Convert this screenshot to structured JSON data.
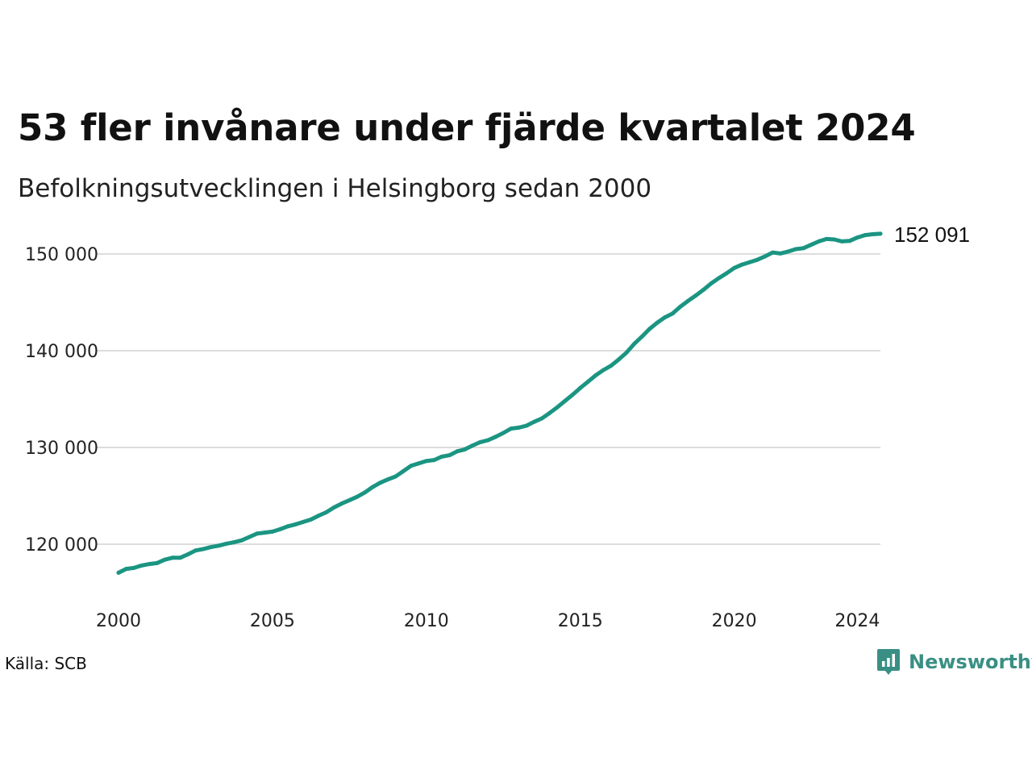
{
  "header": {
    "title": "53 fler invånare under fjärde kvartalet 2024",
    "subtitle": "Befolkningsutvecklingen i Helsingborg sedan 2000"
  },
  "footer": {
    "source": "Källa: SCB",
    "brand": "Newsworthy",
    "brand_icon": "newsworthy-logo-icon",
    "brand_color": "#3a8f84"
  },
  "chart_data": {
    "type": "line",
    "title": "53 fler invånare under fjärde kvartalet 2024",
    "subtitle": "Befolkningsutvecklingen i Helsingborg sedan 2000",
    "xlabel": "",
    "ylabel": "",
    "color": "#1b9582",
    "grid": true,
    "xlim": [
      2000.0,
      2024.75
    ],
    "ylim": [
      115000,
      152500
    ],
    "xticks": [
      2000,
      2005,
      2010,
      2015,
      2020,
      2024
    ],
    "xtick_labels": [
      "2000",
      "2005",
      "2010",
      "2015",
      "2020",
      "2024"
    ],
    "yticks": [
      120000,
      130000,
      140000,
      150000
    ],
    "ytick_labels": [
      "120 000",
      "130 000",
      "140 000",
      "150 000"
    ],
    "end_label": "152 091",
    "series": [
      {
        "x": [
          2000.0,
          2000.25,
          2000.5,
          2000.75,
          2001.0,
          2001.25,
          2001.5,
          2001.75,
          2002.0,
          2002.25,
          2002.5,
          2002.75,
          2003.0,
          2003.25,
          2003.5,
          2003.75,
          2004.0,
          2004.25,
          2004.5,
          2004.75,
          2005.0,
          2005.25,
          2005.5,
          2005.75,
          2006.0,
          2006.25,
          2006.5,
          2006.75,
          2007.0,
          2007.25,
          2007.5,
          2007.75,
          2008.0,
          2008.25,
          2008.5,
          2008.75,
          2009.0,
          2009.25,
          2009.5,
          2009.75,
          2010.0,
          2010.25,
          2010.5,
          2010.75,
          2011.0,
          2011.25,
          2011.5,
          2011.75,
          2012.0,
          2012.25,
          2012.5,
          2012.75,
          2013.0,
          2013.25,
          2013.5,
          2013.75,
          2014.0,
          2014.25,
          2014.5,
          2014.75,
          2015.0,
          2015.25,
          2015.5,
          2015.75,
          2016.0,
          2016.25,
          2016.5,
          2016.75,
          2017.0,
          2017.25,
          2017.5,
          2017.75,
          2018.0,
          2018.25,
          2018.5,
          2018.75,
          2019.0,
          2019.25,
          2019.5,
          2019.75,
          2020.0,
          2020.25,
          2020.5,
          2020.75,
          2021.0,
          2021.25,
          2021.5,
          2021.75,
          2022.0,
          2022.25,
          2022.5,
          2022.75,
          2023.0,
          2023.25,
          2023.5,
          2023.75,
          2024.0,
          2024.25,
          2024.5,
          2024.75
        ],
        "values": [
          117050,
          117450,
          117550,
          117800,
          117950,
          118050,
          118400,
          118600,
          118600,
          118950,
          119350,
          119500,
          119700,
          119850,
          120050,
          120200,
          120400,
          120750,
          121100,
          121200,
          121300,
          121550,
          121850,
          122050,
          122300,
          122550,
          122950,
          123300,
          123800,
          124200,
          124550,
          124900,
          125350,
          125900,
          126350,
          126700,
          127000,
          127550,
          128100,
          128350,
          128600,
          128700,
          129050,
          129200,
          129600,
          129800,
          130200,
          130550,
          130750,
          131100,
          131500,
          131950,
          132050,
          132250,
          132650,
          133000,
          133550,
          134150,
          134800,
          135450,
          136150,
          136800,
          137450,
          138000,
          138450,
          139100,
          139800,
          140700,
          141450,
          142250,
          142900,
          143450,
          143850,
          144550,
          145150,
          145700,
          146300,
          146950,
          147500,
          148000,
          148550,
          148900,
          149150,
          149400,
          149750,
          150150,
          150050,
          150250,
          150500,
          150600,
          150950,
          151300,
          151550,
          151500,
          151300,
          151350,
          151700,
          151950,
          152038,
          152091
        ]
      }
    ]
  }
}
